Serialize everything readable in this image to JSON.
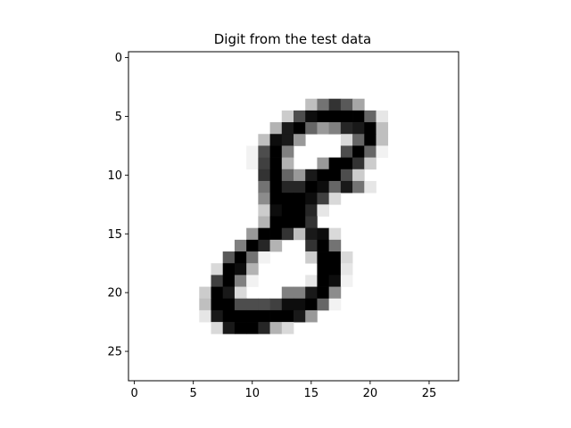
{
  "chart_data": {
    "type": "heatmap",
    "title": "Digit from the test data",
    "xlabel": "",
    "ylabel": "",
    "rows": 28,
    "cols": 28,
    "xlim": [
      -0.5,
      27.5
    ],
    "ylim": [
      27.5,
      -0.5
    ],
    "xticks": [
      0,
      5,
      10,
      15,
      20,
      25
    ],
    "yticks": [
      0,
      5,
      10,
      15,
      20,
      25
    ],
    "colormap": "gray_r",
    "value_range": [
      0,
      1
    ],
    "grid": false,
    "pixels": [
      [
        4,
        15,
        0.25
      ],
      [
        4,
        16,
        0.55
      ],
      [
        4,
        17,
        0.8
      ],
      [
        4,
        18,
        0.65
      ],
      [
        4,
        19,
        0.35
      ],
      [
        5,
        13,
        0.2
      ],
      [
        5,
        14,
        0.7
      ],
      [
        5,
        15,
        0.95
      ],
      [
        5,
        16,
        1
      ],
      [
        5,
        17,
        1
      ],
      [
        5,
        18,
        1
      ],
      [
        5,
        19,
        1
      ],
      [
        5,
        20,
        0.6
      ],
      [
        5,
        21,
        0.1
      ],
      [
        6,
        12,
        0.3
      ],
      [
        6,
        13,
        0.9
      ],
      [
        6,
        14,
        1
      ],
      [
        6,
        15,
        0.6
      ],
      [
        6,
        16,
        0.4
      ],
      [
        6,
        17,
        0.5
      ],
      [
        6,
        18,
        0.85
      ],
      [
        6,
        19,
        0.9
      ],
      [
        6,
        20,
        1
      ],
      [
        6,
        21,
        0.25
      ],
      [
        7,
        11,
        0.25
      ],
      [
        7,
        12,
        0.95
      ],
      [
        7,
        13,
        0.9
      ],
      [
        7,
        14,
        0.4
      ],
      [
        7,
        18,
        0.15
      ],
      [
        7,
        19,
        0.6
      ],
      [
        7,
        20,
        1
      ],
      [
        7,
        21,
        0.25
      ],
      [
        8,
        10,
        0.05
      ],
      [
        8,
        11,
        0.7
      ],
      [
        8,
        12,
        1
      ],
      [
        8,
        13,
        0.5
      ],
      [
        8,
        18,
        0.7
      ],
      [
        8,
        19,
        1
      ],
      [
        8,
        20,
        0.6
      ],
      [
        8,
        21,
        0.05
      ],
      [
        9,
        10,
        0.05
      ],
      [
        9,
        11,
        0.75
      ],
      [
        9,
        12,
        1
      ],
      [
        9,
        13,
        0.3
      ],
      [
        9,
        16,
        0.4
      ],
      [
        9,
        17,
        1
      ],
      [
        9,
        18,
        1
      ],
      [
        9,
        19,
        0.8
      ],
      [
        9,
        20,
        0.2
      ],
      [
        10,
        11,
        0.8
      ],
      [
        10,
        12,
        1
      ],
      [
        10,
        13,
        0.6
      ],
      [
        10,
        14,
        0.4
      ],
      [
        10,
        15,
        0.9
      ],
      [
        10,
        16,
        1
      ],
      [
        10,
        17,
        1
      ],
      [
        10,
        18,
        0.7
      ],
      [
        10,
        19,
        0.2
      ],
      [
        11,
        11,
        0.55
      ],
      [
        11,
        12,
        1
      ],
      [
        11,
        13,
        0.85
      ],
      [
        11,
        14,
        0.85
      ],
      [
        11,
        15,
        1
      ],
      [
        11,
        16,
        0.95
      ],
      [
        11,
        17,
        0.6
      ],
      [
        11,
        18,
        0.9
      ],
      [
        11,
        19,
        0.55
      ],
      [
        11,
        20,
        0.1
      ],
      [
        12,
        11,
        0.45
      ],
      [
        12,
        12,
        1
      ],
      [
        12,
        13,
        1
      ],
      [
        12,
        14,
        1
      ],
      [
        12,
        15,
        0.95
      ],
      [
        12,
        16,
        0.75
      ],
      [
        12,
        17,
        0.15
      ],
      [
        13,
        11,
        0.2
      ],
      [
        13,
        12,
        0.95
      ],
      [
        13,
        13,
        1
      ],
      [
        13,
        14,
        1
      ],
      [
        13,
        15,
        0.85
      ],
      [
        13,
        16,
        0.1
      ],
      [
        14,
        11,
        0.3
      ],
      [
        14,
        12,
        1
      ],
      [
        14,
        13,
        1
      ],
      [
        14,
        14,
        1
      ],
      [
        14,
        15,
        0.8
      ],
      [
        15,
        10,
        0.4
      ],
      [
        15,
        11,
        1
      ],
      [
        15,
        12,
        1
      ],
      [
        15,
        13,
        0.8
      ],
      [
        15,
        14,
        0.25
      ],
      [
        15,
        15,
        0.9
      ],
      [
        15,
        16,
        0.95
      ],
      [
        15,
        17,
        0.15
      ],
      [
        16,
        9,
        0.5
      ],
      [
        16,
        10,
        1
      ],
      [
        16,
        11,
        0.85
      ],
      [
        16,
        12,
        0.3
      ],
      [
        16,
        15,
        0.8
      ],
      [
        16,
        16,
        1
      ],
      [
        16,
        17,
        0.55
      ],
      [
        17,
        8,
        0.65
      ],
      [
        17,
        9,
        1
      ],
      [
        17,
        10,
        0.55
      ],
      [
        17,
        11,
        0.05
      ],
      [
        17,
        15,
        0.2
      ],
      [
        17,
        16,
        1
      ],
      [
        17,
        17,
        1
      ],
      [
        17,
        18,
        0.15
      ],
      [
        18,
        7,
        0.15
      ],
      [
        18,
        8,
        1
      ],
      [
        18,
        9,
        0.95
      ],
      [
        18,
        10,
        0.3
      ],
      [
        18,
        16,
        1
      ],
      [
        18,
        17,
        1
      ],
      [
        18,
        18,
        0.1
      ],
      [
        19,
        7,
        0.75
      ],
      [
        19,
        8,
        1
      ],
      [
        19,
        9,
        0.5
      ],
      [
        19,
        10,
        0.05
      ],
      [
        19,
        15,
        0.1
      ],
      [
        19,
        16,
        1
      ],
      [
        19,
        17,
        0.95
      ],
      [
        19,
        18,
        0.05
      ],
      [
        20,
        6,
        0.2
      ],
      [
        20,
        7,
        1
      ],
      [
        20,
        8,
        0.9
      ],
      [
        20,
        9,
        0.15
      ],
      [
        20,
        13,
        0.5
      ],
      [
        20,
        14,
        0.5
      ],
      [
        20,
        15,
        0.9
      ],
      [
        20,
        16,
        1
      ],
      [
        20,
        17,
        0.45
      ],
      [
        21,
        6,
        0.25
      ],
      [
        21,
        7,
        1
      ],
      [
        21,
        8,
        1
      ],
      [
        21,
        9,
        0.7
      ],
      [
        21,
        10,
        0.7
      ],
      [
        21,
        11,
        0.7
      ],
      [
        21,
        12,
        0.75
      ],
      [
        21,
        13,
        0.95
      ],
      [
        21,
        14,
        0.95
      ],
      [
        21,
        15,
        1
      ],
      [
        21,
        16,
        0.6
      ],
      [
        21,
        17,
        0.05
      ],
      [
        22,
        6,
        0.1
      ],
      [
        22,
        7,
        0.9
      ],
      [
        22,
        8,
        1
      ],
      [
        22,
        9,
        1
      ],
      [
        22,
        10,
        1
      ],
      [
        22,
        11,
        1
      ],
      [
        22,
        12,
        1
      ],
      [
        22,
        13,
        1
      ],
      [
        22,
        14,
        0.9
      ],
      [
        22,
        15,
        0.4
      ],
      [
        23,
        7,
        0.15
      ],
      [
        23,
        8,
        0.9
      ],
      [
        23,
        9,
        1
      ],
      [
        23,
        10,
        1
      ],
      [
        23,
        11,
        0.85
      ],
      [
        23,
        12,
        0.3
      ],
      [
        23,
        13,
        0.15
      ]
    ]
  }
}
